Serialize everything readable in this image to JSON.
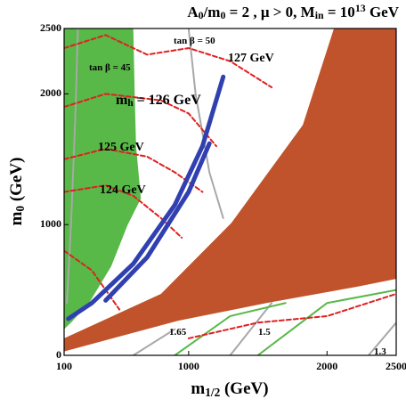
{
  "chart_data": {
    "type": "region",
    "title": [
      "A",
      "0",
      "/m",
      "0",
      " = 2 ,  μ > 0, M",
      "in",
      " = 10",
      "13",
      " GeV"
    ],
    "x_label": [
      "m",
      "1/2",
      " (GeV)"
    ],
    "y_label": [
      "m",
      "0",
      " (GeV)"
    ],
    "xlim": [
      100,
      2500
    ],
    "ylim": [
      0,
      2500
    ],
    "xticks": [
      100,
      1000,
      2000,
      2500
    ],
    "yticks": [
      0,
      1000,
      2000,
      2500
    ],
    "areas": [
      {
        "color": "#58b848",
        "x": [
          100,
          600,
          610,
          620,
          655,
          560,
          440,
          280,
          150,
          100
        ],
        "y": [
          2500,
          2500,
          2000,
          1600,
          1200,
          1000,
          680,
          400,
          250,
          200
        ]
      },
      {
        "color": "#c0532b",
        "x": [
          100,
          800,
          1310,
          1825,
          2050,
          2500,
          2500,
          2211,
          1567,
          924,
          100
        ],
        "y": [
          130,
          470,
          1014,
          1762,
          2500,
          2500,
          585,
          524,
          401,
          265,
          30
        ]
      }
    ],
    "lines": [
      {
        "color": "#a8a8a8",
        "dash": false,
        "x": [
          200,
          180,
          150,
          120
        ],
        "y": [
          2500,
          1800,
          1000,
          400
        ]
      },
      {
        "color": "#a8a8a8",
        "dash": false,
        "x": [
          1000,
          1050,
          1150,
          1250
        ],
        "y": [
          2500,
          2000,
          1400,
          1050
        ]
      },
      {
        "color": "#a8a8a8",
        "dash": false,
        "x": [
          600,
          900
        ],
        "y": [
          0,
          200
        ]
      },
      {
        "color": "#a8a8a8",
        "dash": false,
        "x": [
          1300,
          1600
        ],
        "y": [
          0,
          400
        ]
      },
      {
        "color": "#a8a8a8",
        "dash": false,
        "x": [
          2300,
          2500
        ],
        "y": [
          0,
          250
        ]
      },
      {
        "color": "#58b848",
        "dash": false,
        "x": [
          900,
          1300,
          1700
        ],
        "y": [
          0,
          300,
          400
        ]
      },
      {
        "color": "#58b848",
        "dash": false,
        "x": [
          1500,
          2000,
          2500
        ],
        "y": [
          0,
          400,
          500
        ]
      },
      {
        "color": "#e02020",
        "dash": true,
        "x": [
          100,
          400,
          600,
          800,
          950
        ],
        "y": [
          1250,
          1300,
          1220,
          1050,
          900
        ]
      },
      {
        "color": "#e02020",
        "dash": true,
        "x": [
          100,
          400,
          700,
          900,
          1100
        ],
        "y": [
          1500,
          1580,
          1520,
          1400,
          1250
        ]
      },
      {
        "color": "#e02020",
        "dash": true,
        "x": [
          100,
          400,
          800,
          1000,
          1200
        ],
        "y": [
          1900,
          2000,
          1950,
          1850,
          1600
        ]
      },
      {
        "color": "#e02020",
        "dash": true,
        "x": [
          100,
          400,
          700,
          1000,
          1300,
          1600
        ],
        "y": [
          2350,
          2450,
          2300,
          2350,
          2250,
          2050
        ]
      },
      {
        "color": "#e02020",
        "dash": true,
        "x": [
          100,
          300,
          500
        ],
        "y": [
          800,
          650,
          350
        ]
      },
      {
        "color": "#e02020",
        "dash": true,
        "x": [
          1000,
          1500,
          2000,
          2500
        ],
        "y": [
          130,
          250,
          300,
          470
        ]
      },
      {
        "color": "#3040b0",
        "dash": false,
        "x": [
          130,
          300,
          600,
          900,
          1100,
          1250
        ],
        "y": [
          280,
          400,
          700,
          1150,
          1600,
          2130
        ]
      },
      {
        "color": "#3040b0",
        "dash": false,
        "x": [
          400,
          700,
          1000,
          1150
        ],
        "y": [
          420,
          750,
          1250,
          1620
        ]
      }
    ],
    "annotations": [
      {
        "text": [
          "tan β = 45"
        ]
      },
      {
        "text": [
          "tan β = 50"
        ]
      },
      {
        "text": [
          "127 GeV"
        ]
      },
      {
        "text": [
          "m",
          "h",
          " = 126 GeV"
        ]
      },
      {
        "text": [
          "125 GeV"
        ]
      },
      {
        "text": [
          "124 GeV"
        ]
      },
      {
        "text": [
          "1.65"
        ]
      },
      {
        "text": [
          "1.5"
        ]
      },
      {
        "text": [
          "1.3"
        ]
      }
    ]
  }
}
